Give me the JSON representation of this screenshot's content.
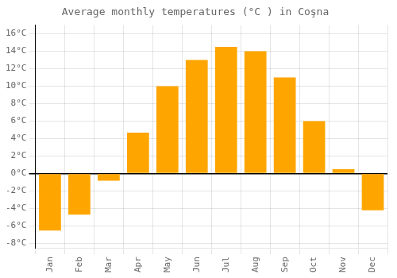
{
  "chart_data": {
    "type": "bar",
    "title": "Average monthly temperatures (°C ) in Coşna",
    "categories": [
      "Jan",
      "Feb",
      "Mar",
      "Apr",
      "May",
      "Jun",
      "Jul",
      "Aug",
      "Sep",
      "Oct",
      "Nov",
      "Dec"
    ],
    "values": [
      -6.5,
      -4.7,
      -0.8,
      4.7,
      10.0,
      13.0,
      14.5,
      14.0,
      11.0,
      6.0,
      0.5,
      -4.2
    ],
    "color": "#FFA500",
    "ylim": [
      -8.5,
      17
    ],
    "yticks": [
      {
        "value": -8,
        "label": "-8°C"
      },
      {
        "value": -6,
        "label": "-6°C"
      },
      {
        "value": -4,
        "label": "-4°C"
      },
      {
        "value": -2,
        "label": "-2°C"
      },
      {
        "value": 0,
        "label": "0°C"
      },
      {
        "value": 2,
        "label": "2°C"
      },
      {
        "value": 4,
        "label": "4°C"
      },
      {
        "value": 6,
        "label": "6°C"
      },
      {
        "value": 8,
        "label": "8°C"
      },
      {
        "value": 10,
        "label": "10°C"
      },
      {
        "value": 12,
        "label": "12°C"
      },
      {
        "value": 14,
        "label": "14°C"
      },
      {
        "value": 16,
        "label": "16°C"
      }
    ],
    "grid": true
  }
}
